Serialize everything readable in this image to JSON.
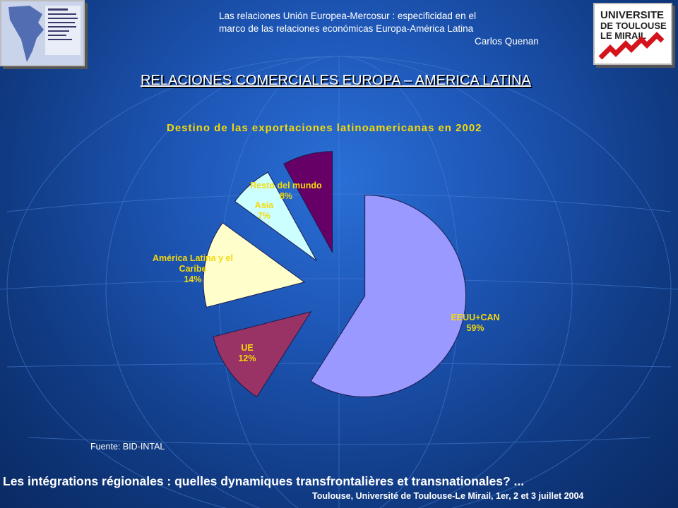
{
  "header": {
    "line1": "Las relaciones Unión Europea-Mercosur : especificidad en el",
    "line2": "marco de las relaciones económicas Europa-América Latina",
    "author": "Carlos Quenan"
  },
  "logos": {
    "left": "IPEALT Institut Pluridisciplinaire pour les Etudes sur l'Amérique Latine à Toulouse",
    "right": "UNIVERSITE DE TOULOUSE LE MIRAIL"
  },
  "slide_title": "RELACIONES COMERCIALES EUROPA – AMERICA LATINA",
  "chart_data": {
    "type": "pie",
    "title": "Destino de las exportaciones latinoamericanas en 2002",
    "slices": [
      {
        "label": "EEUU+CAN",
        "value": 59,
        "value_label": "59%",
        "color": "#9999ff"
      },
      {
        "label": "UE",
        "value": 12,
        "value_label": "12%",
        "color": "#993366"
      },
      {
        "label": "América Latina y el Caribe",
        "value": 14,
        "value_label": "14%",
        "color": "#ffffcc"
      },
      {
        "label": "Asia",
        "value": 7,
        "value_label": "7%",
        "color": "#ccffff"
      },
      {
        "label": "Resto del mundo",
        "value": 8,
        "value_label": "8%",
        "color": "#660066"
      }
    ],
    "start": "12 o'clock, clockwise",
    "exploded": true,
    "legend": "none"
  },
  "source": "Fuente: BID-INTAL",
  "footer": {
    "main": "Les intégrations régionales : quelles dynamiques transfrontalières et transnationales? ...",
    "sub": "Toulouse, Université de Toulouse-Le Mirail, 1er, 2 et 3 juillet 2004"
  }
}
